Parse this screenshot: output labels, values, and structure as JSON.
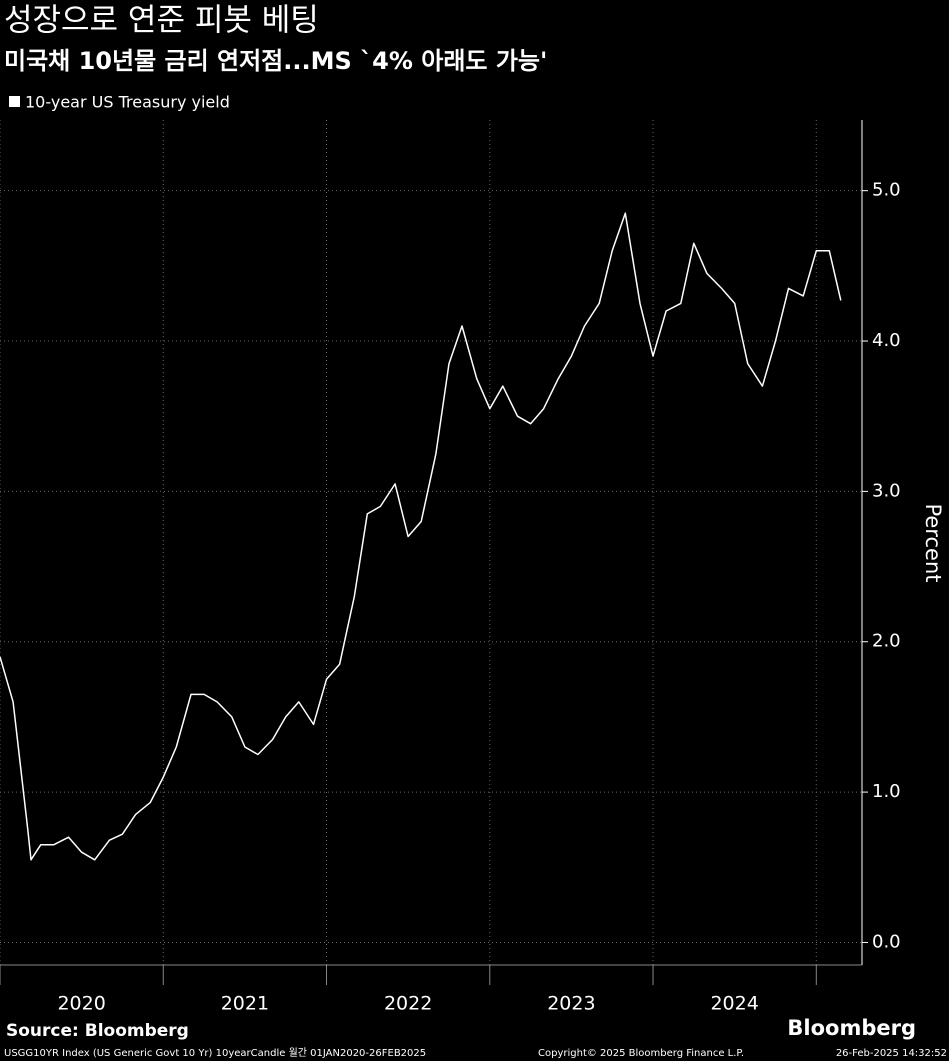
{
  "chart_data": {
    "type": "line",
    "title": "성장으로 연준 피봇 베팅",
    "subtitle": "미국채 10년물 금리 연저점...MS `4% 아래도 가능'",
    "ylabel": "Percent",
    "source": "Source: Bloomberg",
    "brand": "Bloomberg",
    "footer_left": "USGG10YR Index (US Generic Govt 10 Yr) 10yearCandle  월간 01JAN2020-26FEB2025",
    "footer_center": "Copyright© 2025 Bloomberg Finance L.P.",
    "footer_right": "26-Feb-2025 14:32:52",
    "x": [
      2020.0,
      2020.08,
      2020.17,
      2020.19,
      2020.25,
      2020.33,
      2020.42,
      2020.5,
      2020.58,
      2020.67,
      2020.75,
      2020.83,
      2020.92,
      2021.0,
      2021.08,
      2021.17,
      2021.25,
      2021.33,
      2021.42,
      2021.5,
      2021.58,
      2021.67,
      2021.75,
      2021.83,
      2021.92,
      2022.0,
      2022.08,
      2022.17,
      2022.25,
      2022.33,
      2022.42,
      2022.5,
      2022.58,
      2022.67,
      2022.75,
      2022.83,
      2022.92,
      2023.0,
      2023.08,
      2023.17,
      2023.25,
      2023.33,
      2023.42,
      2023.5,
      2023.58,
      2023.67,
      2023.75,
      2023.83,
      2023.92,
      2024.0,
      2024.08,
      2024.17,
      2024.25,
      2024.33,
      2024.42,
      2024.5,
      2024.58,
      2024.67,
      2024.75,
      2024.83,
      2024.92,
      2025.0,
      2025.08,
      2025.15
    ],
    "series": [
      {
        "name": "10-year US Treasury yield",
        "color": "#ffffff",
        "values": [
          1.9,
          1.6,
          0.75,
          0.55,
          0.65,
          0.65,
          0.7,
          0.6,
          0.55,
          0.68,
          0.72,
          0.85,
          0.93,
          1.1,
          1.3,
          1.65,
          1.65,
          1.6,
          1.5,
          1.3,
          1.25,
          1.35,
          1.5,
          1.6,
          1.45,
          1.75,
          1.85,
          2.3,
          2.85,
          2.9,
          3.05,
          2.7,
          2.8,
          3.25,
          3.85,
          4.1,
          3.75,
          3.55,
          3.7,
          3.5,
          3.45,
          3.55,
          3.75,
          3.9,
          4.1,
          4.25,
          4.6,
          4.85,
          4.25,
          3.9,
          4.2,
          4.25,
          4.65,
          4.45,
          4.35,
          4.25,
          3.85,
          3.7,
          4.0,
          4.35,
          4.3,
          4.6,
          4.6,
          4.27
        ]
      }
    ],
    "xlim": [
      2020,
      2025.28
    ],
    "xticks": [
      {
        "value": 2020,
        "label": "2020"
      },
      {
        "value": 2021,
        "label": "2021"
      },
      {
        "value": 2022,
        "label": "2022"
      },
      {
        "value": 2023,
        "label": "2023"
      },
      {
        "value": 2024,
        "label": "2024"
      },
      2025
    ],
    "ylim": [
      -0.15,
      5.47
    ],
    "yticks": [
      {
        "value": 0,
        "label": "0.0"
      },
      {
        "value": 1,
        "label": "1.0"
      },
      {
        "value": 2,
        "label": "2.0"
      },
      {
        "value": 3,
        "label": "3.0"
      },
      {
        "value": 4,
        "label": "4.0"
      },
      {
        "value": 5,
        "label": "5.0"
      }
    ],
    "grid": true
  }
}
